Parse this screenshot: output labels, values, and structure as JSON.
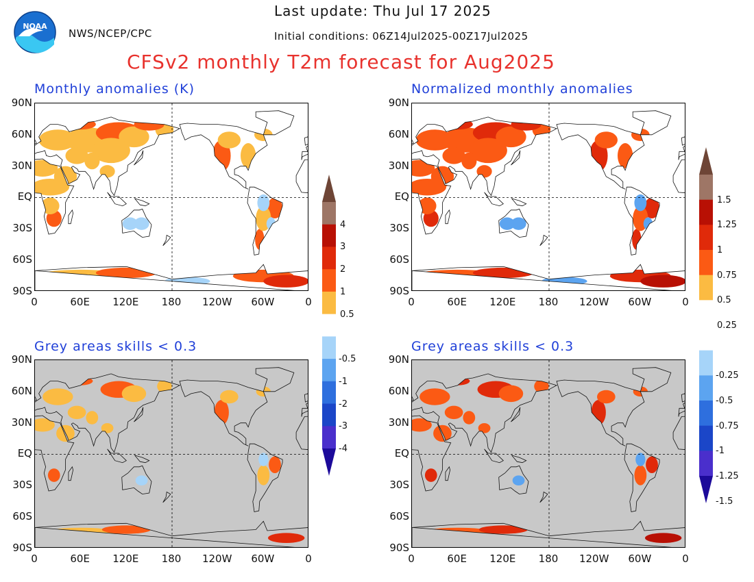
{
  "header": {
    "last_update": "Last update: Thu Jul 17 2025",
    "initial_conditions": "Initial conditions: 06Z14Jul2025-00Z17Jul2025",
    "main_title": "CFSv2 monthly T2m forecast for Aug2025",
    "agency": "NWS/NCEP/CPC",
    "logo_text": "NOAA"
  },
  "panels": {
    "top_left_title": "Monthly anomalies (K)",
    "top_right_title": "Normalized monthly anomalies",
    "bottom_left_title": "Grey areas skills < 0.3",
    "bottom_right_title": "Grey areas skills < 0.3"
  },
  "axes": {
    "lat_labels": [
      "90N",
      "60N",
      "30N",
      "EQ",
      "30S",
      "60S",
      "90S"
    ],
    "lon_labels": [
      "0",
      "60E",
      "120E",
      "180",
      "120W",
      "60W",
      "0"
    ]
  },
  "colorbar_left": {
    "labels": [
      "4",
      "3",
      "2",
      "1",
      "0.5",
      "-0.5",
      "-1",
      "-2",
      "-3",
      "-4"
    ]
  },
  "colorbar_right": {
    "labels": [
      "1.5",
      "1.25",
      "1",
      "0.75",
      "0.5",
      "0.25",
      "-0.25",
      "-0.5",
      "-0.75",
      "-1",
      "-1.25",
      "-1.5"
    ]
  },
  "colors": {
    "title_red": "#e8322d",
    "panel_title_blue": "#1f3fd8",
    "skill_grey": "#c8c8c8",
    "warm": [
      "#fbbb42",
      "#fb5a14",
      "#e02a0a",
      "#b81004",
      "#9e7666",
      "#6e4536"
    ],
    "cold": [
      "#a6d4f9",
      "#5ca4f0",
      "#2e6fde",
      "#1b46c8",
      "#4a2fcc",
      "#1c0a9a"
    ]
  }
}
